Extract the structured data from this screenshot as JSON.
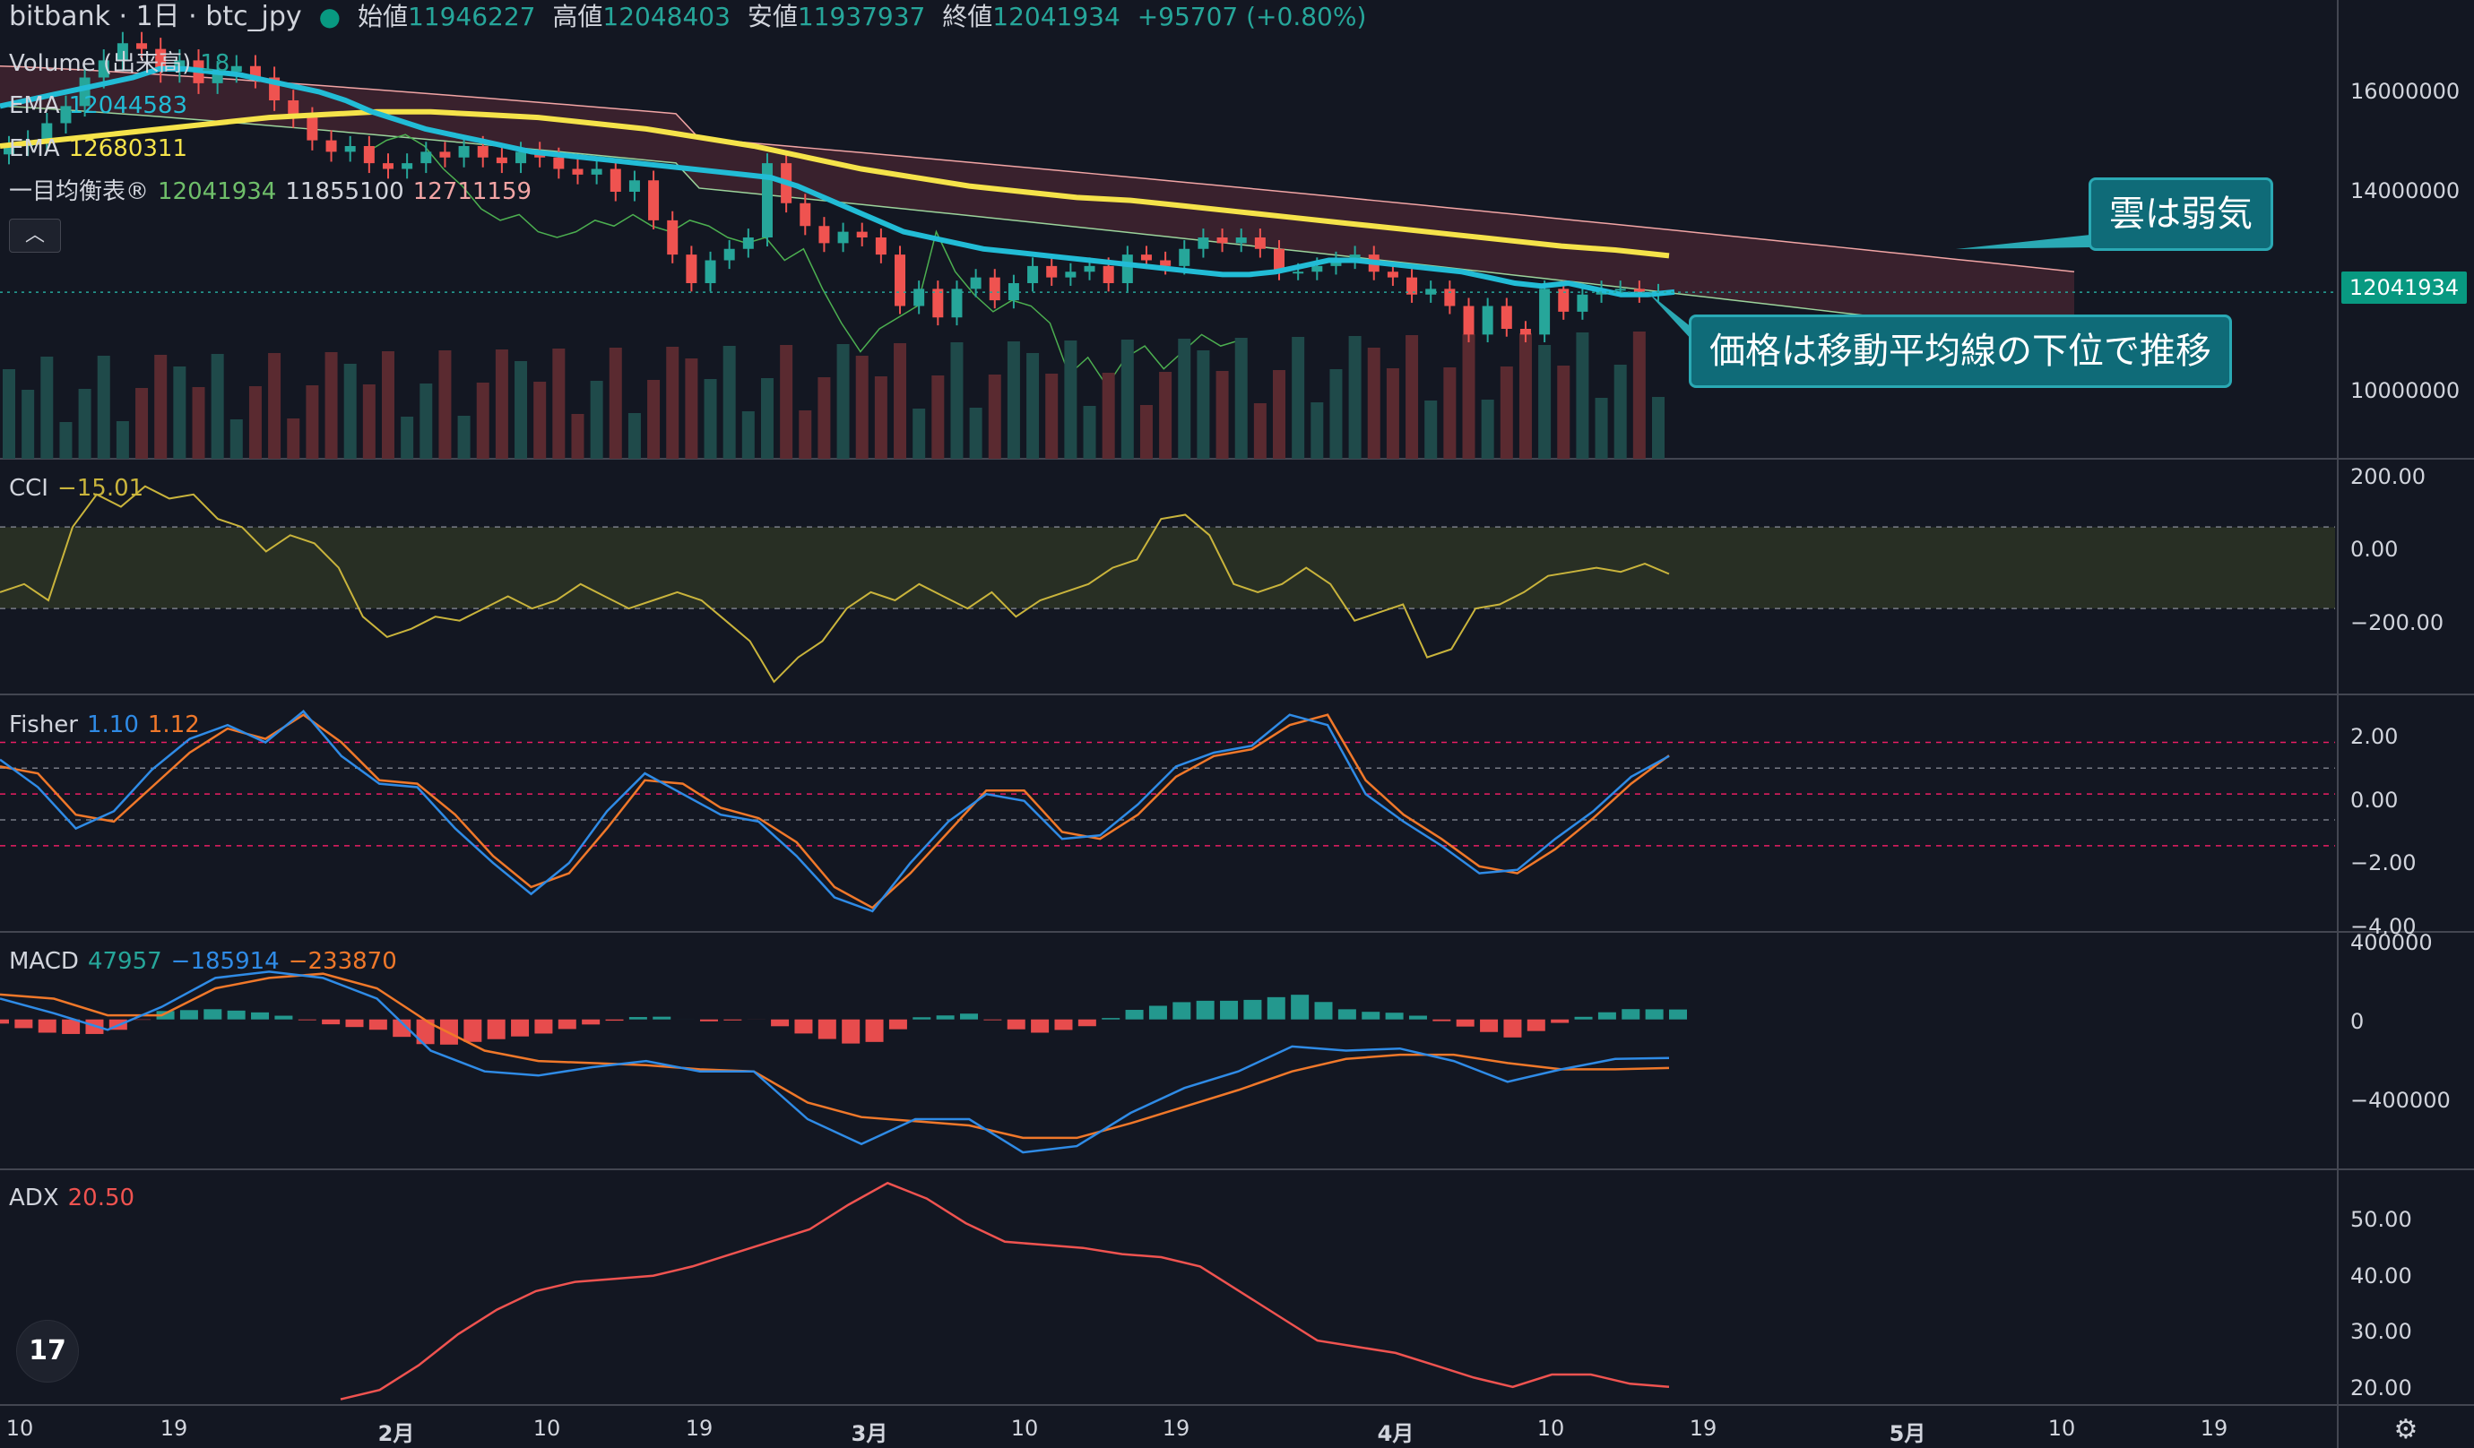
{
  "header": {
    "symbol_title": "bitbank · 1日 · btc_jpy",
    "open_label": "始値",
    "open_value": "11946227",
    "high_label": "高値",
    "high_value": "12048403",
    "low_label": "安値",
    "low_value": "11937937",
    "close_label": "終値",
    "close_value": "12041934",
    "change": "+95707 (+0.80%)"
  },
  "legend": {
    "volume_label": "Volume (出来高)",
    "volume_value": "18",
    "ema1_label": "EMA",
    "ema1_value": "12044583",
    "ema2_label": "EMA",
    "ema2_value": "12680311",
    "ichimoku_label": "一目均衡表®",
    "ichimoku_v1": "12041934",
    "ichimoku_v2": "11855100",
    "ichimoku_v3": "12711159",
    "cci_label": "CCI",
    "cci_value": "−15.01",
    "fisher_label": "Fisher",
    "fisher_v1": "1.10",
    "fisher_v2": "1.12",
    "macd_label": "MACD",
    "macd_v1": "47957",
    "macd_v2": "−185914",
    "macd_v3": "−233870",
    "adx_label": "ADX",
    "adx_value": "20.50"
  },
  "price_axis": {
    "ticks": [
      "16000000",
      "14000000",
      "12000000",
      "10000000"
    ],
    "last_price_tag": "12041934"
  },
  "cci_axis": [
    "200.00",
    "0.00",
    "−200.00"
  ],
  "fisher_axis": [
    "2.00",
    "0.00",
    "−2.00",
    "−4.00"
  ],
  "macd_axis": [
    "400000",
    "0",
    "−400000"
  ],
  "adx_axis": [
    "50.00",
    "40.00",
    "30.00",
    "20.00"
  ],
  "time_axis": [
    "10",
    "19",
    "2月",
    "10",
    "19",
    "3月",
    "10",
    "19",
    "4月",
    "10",
    "19",
    "5月",
    "10",
    "19"
  ],
  "callouts": {
    "cloud_weak": "雲は弱気",
    "price_below_ma": "価格は移動平均線の下位で推移"
  },
  "icons": {
    "collapse": "chevron-up-icon",
    "logo": "tradingview-logo-icon",
    "settings": "settings-icon"
  },
  "colors": {
    "background": "#131722",
    "up": "#26a69a",
    "down": "#ef5350",
    "ema_fast": "#22bcd6",
    "ema_slow": "#f5e34a",
    "cloud": "#5a2a36",
    "cci": "#c9b43c",
    "fisher1": "#2f8be6",
    "fisher2": "#f0782a",
    "macd": "#2f8be6",
    "signal": "#f0782a",
    "adx": "#ef5350"
  },
  "chart_data": [
    {
      "type": "candlestick",
      "title": "bitbank · 1日 · btc_jpy",
      "x_ticks": [
        "10",
        "19",
        "2月",
        "10",
        "19",
        "3月",
        "10",
        "19",
        "4月",
        "10",
        "19",
        "5月",
        "10",
        "19"
      ],
      "ylim": [
        9000000,
        17000000
      ],
      "y_ticks": [
        16000000,
        14000000,
        12000000,
        10000000
      ],
      "close": [
        14600000,
        14700000,
        15000000,
        15300000,
        15800000,
        16100000,
        16400000,
        16300000,
        15900000,
        16100000,
        15700000,
        15900000,
        16000000,
        15800000,
        15400000,
        15100000,
        14700000,
        14500000,
        14600000,
        14300000,
        14200000,
        14300000,
        14500000,
        14400000,
        14600000,
        14400000,
        14300000,
        14500000,
        14400000,
        14200000,
        14100000,
        14200000,
        13800000,
        14000000,
        13300000,
        12700000,
        12200000,
        12600000,
        12800000,
        13000000,
        14300000,
        13600000,
        13200000,
        12900000,
        13100000,
        13000000,
        12700000,
        11800000,
        12100000,
        11600000,
        12100000,
        12300000,
        11900000,
        12200000,
        12500000,
        12300000,
        12400000,
        12500000,
        12200000,
        12700000,
        12600000,
        12500000,
        12800000,
        13000000,
        12900000,
        13000000,
        12800000,
        12400000,
        12400000,
        12500000,
        12600000,
        12700000,
        12400000,
        12300000,
        12000000,
        12100000,
        11800000,
        11300000,
        11800000,
        11400000,
        11300000,
        12100000,
        11700000,
        12000000,
        12100000,
        12100000,
        12000000,
        12041934
      ],
      "ema_fast": [
        15300000,
        15400000,
        15500000,
        15600000,
        15700000,
        15800000,
        15950000,
        15950000,
        15900000,
        15850000,
        15750000,
        15650000,
        15550000,
        15400000,
        15200000,
        15050000,
        14900000,
        14800000,
        14700000,
        14600000,
        14500000,
        14450000,
        14400000,
        14350000,
        14300000,
        14250000,
        14200000,
        14150000,
        14100000,
        14050000,
        13900000,
        13700000,
        13500000,
        13300000,
        13100000,
        13000000,
        12900000,
        12800000,
        12750000,
        12700000,
        12650000,
        12600000,
        12550000,
        12500000,
        12450000,
        12400000,
        12350000,
        12350000,
        12400000,
        12500000,
        12600000,
        12600000,
        12550000,
        12500000,
        12450000,
        12400000,
        12300000,
        12200000,
        12150000,
        12200000,
        12100000,
        12000000,
        12000000,
        12044583
      ],
      "ema_slow": [
        14600000,
        14700000,
        14800000,
        14900000,
        15000000,
        15100000,
        15150000,
        15200000,
        15200000,
        15150000,
        15100000,
        15000000,
        14900000,
        14750000,
        14600000,
        14400000,
        14200000,
        14050000,
        13900000,
        13800000,
        13700000,
        13650000,
        13550000,
        13450000,
        13350000,
        13250000,
        13150000,
        13050000,
        12950000,
        12850000,
        12780000,
        12680311
      ],
      "series_note": ""
    },
    {
      "type": "line",
      "name": "CCI",
      "ylim": [
        -300,
        250
      ],
      "y_ticks": [
        200,
        0,
        -200
      ],
      "values": [
        -60,
        -40,
        -80,
        100,
        180,
        150,
        200,
        170,
        180,
        120,
        100,
        40,
        80,
        60,
        0,
        -120,
        -170,
        -150,
        -120,
        -130,
        -100,
        -70,
        -100,
        -80,
        -40,
        -70,
        -100,
        -80,
        -60,
        -80,
        -130,
        -180,
        -280,
        -220,
        -180,
        -100,
        -60,
        -80,
        -40,
        -70,
        -100,
        -60,
        -120,
        -80,
        -60,
        -40,
        0,
        20,
        120,
        130,
        80,
        -40,
        -60,
        -40,
        0,
        -40,
        -130,
        -110,
        -90,
        -220,
        -200,
        -100,
        -90,
        -60,
        -20,
        -10,
        0,
        -10,
        10,
        -15.01
      ]
    },
    {
      "type": "line",
      "name": "Fisher",
      "ylim": [
        -4,
        2.5
      ],
      "y_ticks": [
        2,
        0,
        -2,
        -4
      ],
      "series": [
        {
          "name": "Fisher",
          "values": [
            1.0,
            0.2,
            -1.0,
            -0.5,
            0.7,
            1.6,
            2.0,
            1.5,
            2.4,
            1.1,
            0.3,
            0.2,
            -1.0,
            -2.0,
            -2.9,
            -2.0,
            -0.5,
            0.6,
            0.0,
            -0.6,
            -0.8,
            -1.8,
            -3.0,
            -3.4,
            -2.0,
            -0.8,
            0.0,
            -0.2,
            -1.3,
            -1.2,
            -0.3,
            0.8,
            1.2,
            1.4,
            2.3,
            2.0,
            0.0,
            -0.8,
            -1.5,
            -2.3,
            -2.2,
            -1.3,
            -0.5,
            0.5,
            1.1
          ]
        },
        {
          "name": "Trigger",
          "values": [
            0.8,
            0.6,
            -0.6,
            -0.8,
            0.2,
            1.2,
            1.9,
            1.6,
            2.3,
            1.5,
            0.4,
            0.3,
            -0.6,
            -1.8,
            -2.7,
            -2.3,
            -1.0,
            0.4,
            0.3,
            -0.4,
            -0.7,
            -1.4,
            -2.7,
            -3.3,
            -2.3,
            -1.1,
            0.1,
            0.1,
            -1.1,
            -1.3,
            -0.6,
            0.5,
            1.1,
            1.3,
            2.0,
            2.3,
            0.4,
            -0.6,
            -1.3,
            -2.1,
            -2.3,
            -1.6,
            -0.7,
            0.3,
            1.12
          ]
        }
      ]
    },
    {
      "type": "line",
      "name": "MACD",
      "ylim": [
        -700000,
        400000
      ],
      "y_ticks": [
        400000,
        0,
        -400000
      ],
      "series": [
        {
          "name": "MACD",
          "values": [
            100000,
            30000,
            -50000,
            60000,
            200000,
            230000,
            200000,
            100000,
            -150000,
            -250000,
            -270000,
            -230000,
            -200000,
            -250000,
            -250000,
            -480000,
            -600000,
            -480000,
            -480000,
            -640000,
            -610000,
            -450000,
            -330000,
            -250000,
            -130000,
            -150000,
            -140000,
            -200000,
            -300000,
            -240000,
            -190000,
            -185914
          ]
        },
        {
          "name": "Signal",
          "values": [
            120000,
            100000,
            20000,
            20000,
            150000,
            200000,
            220000,
            150000,
            -20000,
            -150000,
            -200000,
            -210000,
            -220000,
            -240000,
            -250000,
            -400000,
            -470000,
            -490000,
            -510000,
            -570000,
            -570000,
            -500000,
            -420000,
            -340000,
            -250000,
            -190000,
            -170000,
            -170000,
            -210000,
            -240000,
            -240000,
            -233870
          ]
        },
        {
          "name": "Histogram",
          "values": [
            -20000,
            -70000,
            -70000,
            40000,
            50000,
            30000,
            -20000,
            -50000,
            -130000,
            -100000,
            -70000,
            -20000,
            20000,
            -10000,
            0,
            -80000,
            -130000,
            10000,
            30000,
            -70000,
            -40000,
            50000,
            90000,
            90000,
            120000,
            40000,
            30000,
            -30000,
            -90000,
            0,
            50000,
            47957
          ]
        }
      ]
    },
    {
      "type": "line",
      "name": "ADX",
      "ylim": [
        18,
        55
      ],
      "y_ticks": [
        50,
        20,
        30,
        40
      ],
      "values": [
        18.5,
        20,
        24,
        29,
        33,
        36,
        37.5,
        38,
        38.5,
        40,
        42,
        44,
        46,
        50,
        53.5,
        51,
        47,
        44,
        43.5,
        43,
        42,
        41.5,
        40,
        36,
        32,
        28,
        27,
        26,
        24,
        22,
        20.5,
        22.5,
        22.5,
        21,
        20.5
      ]
    }
  ]
}
